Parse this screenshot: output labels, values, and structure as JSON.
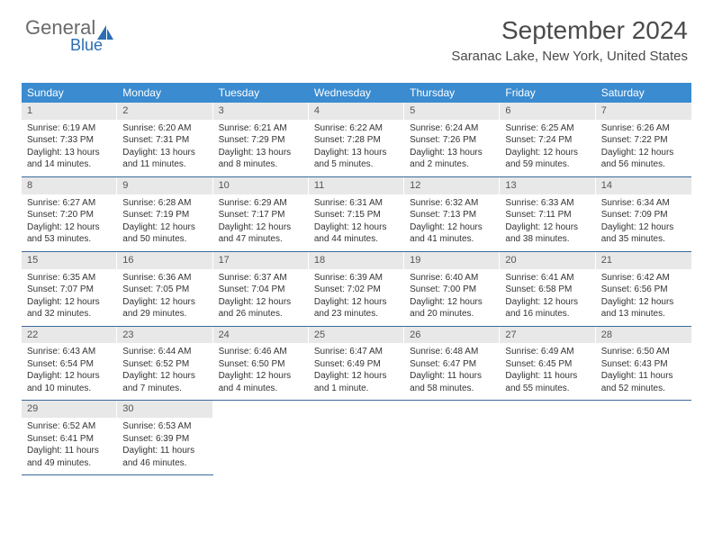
{
  "logo": {
    "text1": "General",
    "text2": "Blue"
  },
  "header": {
    "title": "September 2024",
    "location": "Saranac Lake, New York, United States"
  },
  "colors": {
    "header_bg": "#3a8bd0",
    "header_fg": "#ffffff",
    "daynum_bg": "#e8e8e8",
    "week_border": "#3a6a9a",
    "logo_gray": "#6a6a6a",
    "logo_blue": "#2a6fb5"
  },
  "dayNames": [
    "Sunday",
    "Monday",
    "Tuesday",
    "Wednesday",
    "Thursday",
    "Friday",
    "Saturday"
  ],
  "weeks": [
    [
      {
        "n": "1",
        "sr": "Sunrise: 6:19 AM",
        "ss": "Sunset: 7:33 PM",
        "dl1": "Daylight: 13 hours",
        "dl2": "and 14 minutes."
      },
      {
        "n": "2",
        "sr": "Sunrise: 6:20 AM",
        "ss": "Sunset: 7:31 PM",
        "dl1": "Daylight: 13 hours",
        "dl2": "and 11 minutes."
      },
      {
        "n": "3",
        "sr": "Sunrise: 6:21 AM",
        "ss": "Sunset: 7:29 PM",
        "dl1": "Daylight: 13 hours",
        "dl2": "and 8 minutes."
      },
      {
        "n": "4",
        "sr": "Sunrise: 6:22 AM",
        "ss": "Sunset: 7:28 PM",
        "dl1": "Daylight: 13 hours",
        "dl2": "and 5 minutes."
      },
      {
        "n": "5",
        "sr": "Sunrise: 6:24 AM",
        "ss": "Sunset: 7:26 PM",
        "dl1": "Daylight: 13 hours",
        "dl2": "and 2 minutes."
      },
      {
        "n": "6",
        "sr": "Sunrise: 6:25 AM",
        "ss": "Sunset: 7:24 PM",
        "dl1": "Daylight: 12 hours",
        "dl2": "and 59 minutes."
      },
      {
        "n": "7",
        "sr": "Sunrise: 6:26 AM",
        "ss": "Sunset: 7:22 PM",
        "dl1": "Daylight: 12 hours",
        "dl2": "and 56 minutes."
      }
    ],
    [
      {
        "n": "8",
        "sr": "Sunrise: 6:27 AM",
        "ss": "Sunset: 7:20 PM",
        "dl1": "Daylight: 12 hours",
        "dl2": "and 53 minutes."
      },
      {
        "n": "9",
        "sr": "Sunrise: 6:28 AM",
        "ss": "Sunset: 7:19 PM",
        "dl1": "Daylight: 12 hours",
        "dl2": "and 50 minutes."
      },
      {
        "n": "10",
        "sr": "Sunrise: 6:29 AM",
        "ss": "Sunset: 7:17 PM",
        "dl1": "Daylight: 12 hours",
        "dl2": "and 47 minutes."
      },
      {
        "n": "11",
        "sr": "Sunrise: 6:31 AM",
        "ss": "Sunset: 7:15 PM",
        "dl1": "Daylight: 12 hours",
        "dl2": "and 44 minutes."
      },
      {
        "n": "12",
        "sr": "Sunrise: 6:32 AM",
        "ss": "Sunset: 7:13 PM",
        "dl1": "Daylight: 12 hours",
        "dl2": "and 41 minutes."
      },
      {
        "n": "13",
        "sr": "Sunrise: 6:33 AM",
        "ss": "Sunset: 7:11 PM",
        "dl1": "Daylight: 12 hours",
        "dl2": "and 38 minutes."
      },
      {
        "n": "14",
        "sr": "Sunrise: 6:34 AM",
        "ss": "Sunset: 7:09 PM",
        "dl1": "Daylight: 12 hours",
        "dl2": "and 35 minutes."
      }
    ],
    [
      {
        "n": "15",
        "sr": "Sunrise: 6:35 AM",
        "ss": "Sunset: 7:07 PM",
        "dl1": "Daylight: 12 hours",
        "dl2": "and 32 minutes."
      },
      {
        "n": "16",
        "sr": "Sunrise: 6:36 AM",
        "ss": "Sunset: 7:05 PM",
        "dl1": "Daylight: 12 hours",
        "dl2": "and 29 minutes."
      },
      {
        "n": "17",
        "sr": "Sunrise: 6:37 AM",
        "ss": "Sunset: 7:04 PM",
        "dl1": "Daylight: 12 hours",
        "dl2": "and 26 minutes."
      },
      {
        "n": "18",
        "sr": "Sunrise: 6:39 AM",
        "ss": "Sunset: 7:02 PM",
        "dl1": "Daylight: 12 hours",
        "dl2": "and 23 minutes."
      },
      {
        "n": "19",
        "sr": "Sunrise: 6:40 AM",
        "ss": "Sunset: 7:00 PM",
        "dl1": "Daylight: 12 hours",
        "dl2": "and 20 minutes."
      },
      {
        "n": "20",
        "sr": "Sunrise: 6:41 AM",
        "ss": "Sunset: 6:58 PM",
        "dl1": "Daylight: 12 hours",
        "dl2": "and 16 minutes."
      },
      {
        "n": "21",
        "sr": "Sunrise: 6:42 AM",
        "ss": "Sunset: 6:56 PM",
        "dl1": "Daylight: 12 hours",
        "dl2": "and 13 minutes."
      }
    ],
    [
      {
        "n": "22",
        "sr": "Sunrise: 6:43 AM",
        "ss": "Sunset: 6:54 PM",
        "dl1": "Daylight: 12 hours",
        "dl2": "and 10 minutes."
      },
      {
        "n": "23",
        "sr": "Sunrise: 6:44 AM",
        "ss": "Sunset: 6:52 PM",
        "dl1": "Daylight: 12 hours",
        "dl2": "and 7 minutes."
      },
      {
        "n": "24",
        "sr": "Sunrise: 6:46 AM",
        "ss": "Sunset: 6:50 PM",
        "dl1": "Daylight: 12 hours",
        "dl2": "and 4 minutes."
      },
      {
        "n": "25",
        "sr": "Sunrise: 6:47 AM",
        "ss": "Sunset: 6:49 PM",
        "dl1": "Daylight: 12 hours",
        "dl2": "and 1 minute."
      },
      {
        "n": "26",
        "sr": "Sunrise: 6:48 AM",
        "ss": "Sunset: 6:47 PM",
        "dl1": "Daylight: 11 hours",
        "dl2": "and 58 minutes."
      },
      {
        "n": "27",
        "sr": "Sunrise: 6:49 AM",
        "ss": "Sunset: 6:45 PM",
        "dl1": "Daylight: 11 hours",
        "dl2": "and 55 minutes."
      },
      {
        "n": "28",
        "sr": "Sunrise: 6:50 AM",
        "ss": "Sunset: 6:43 PM",
        "dl1": "Daylight: 11 hours",
        "dl2": "and 52 minutes."
      }
    ],
    [
      {
        "n": "29",
        "sr": "Sunrise: 6:52 AM",
        "ss": "Sunset: 6:41 PM",
        "dl1": "Daylight: 11 hours",
        "dl2": "and 49 minutes."
      },
      {
        "n": "30",
        "sr": "Sunrise: 6:53 AM",
        "ss": "Sunset: 6:39 PM",
        "dl1": "Daylight: 11 hours",
        "dl2": "and 46 minutes."
      },
      null,
      null,
      null,
      null,
      null
    ]
  ]
}
